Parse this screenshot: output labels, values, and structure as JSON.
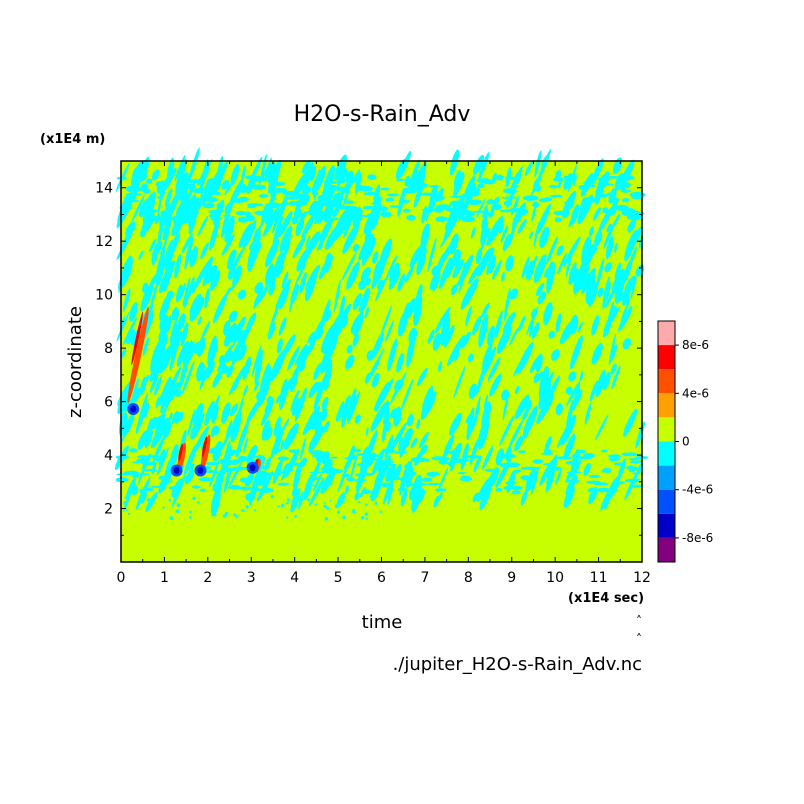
{
  "chart_data": {
    "type": "heatmap",
    "title": "H2O-s-Rain_Adv",
    "xlabel": "time",
    "ylabel": "z-coordinate",
    "x_unit": "(x1E4 sec)",
    "y_unit": "(x1E4 m)",
    "source_file": "./jupiter_H2O-s-Rain_Adv.nc",
    "xlim": [
      0,
      12
    ],
    "ylim": [
      0,
      15
    ],
    "x_ticks": [
      "0",
      "1",
      "2",
      "3",
      "4",
      "5",
      "6",
      "7",
      "8",
      "9",
      "10",
      "11",
      "12"
    ],
    "y_ticks": [
      "2",
      "4",
      "6",
      "8",
      "10",
      "12",
      "14"
    ],
    "colorbar": {
      "levels": [
        -1e-05,
        -8e-06,
        -6e-06,
        -4e-06,
        -2e-06,
        0,
        2e-06,
        4e-06,
        6e-06,
        8e-06,
        1e-05
      ],
      "colors": [
        "#800080",
        "#0000c8",
        "#0050ff",
        "#00a0ff",
        "#00ffff",
        "#c8ff00",
        "#ffa000",
        "#ff5000",
        "#ff0000",
        "#ffaaaa"
      ],
      "labels": [
        "8e-6",
        "4e-6",
        "0",
        "-4e-6",
        "-8e-6"
      ]
    },
    "background_value": 0,
    "features": [
      {
        "name": "strong dipole t≈0.35",
        "x": 0.35,
        "y_range": [
          5.5,
          9.6
        ]
      },
      {
        "name": "burst t≈1.35",
        "x": 1.35,
        "y_range": [
          3.2,
          4.5
        ]
      },
      {
        "name": "burst t≈1.9",
        "x": 1.9,
        "y_range": [
          3.2,
          4.8
        ]
      },
      {
        "name": "weak burst t≈3.1",
        "x": 3.1,
        "y_range": [
          3.3,
          3.9
        ]
      }
    ]
  }
}
